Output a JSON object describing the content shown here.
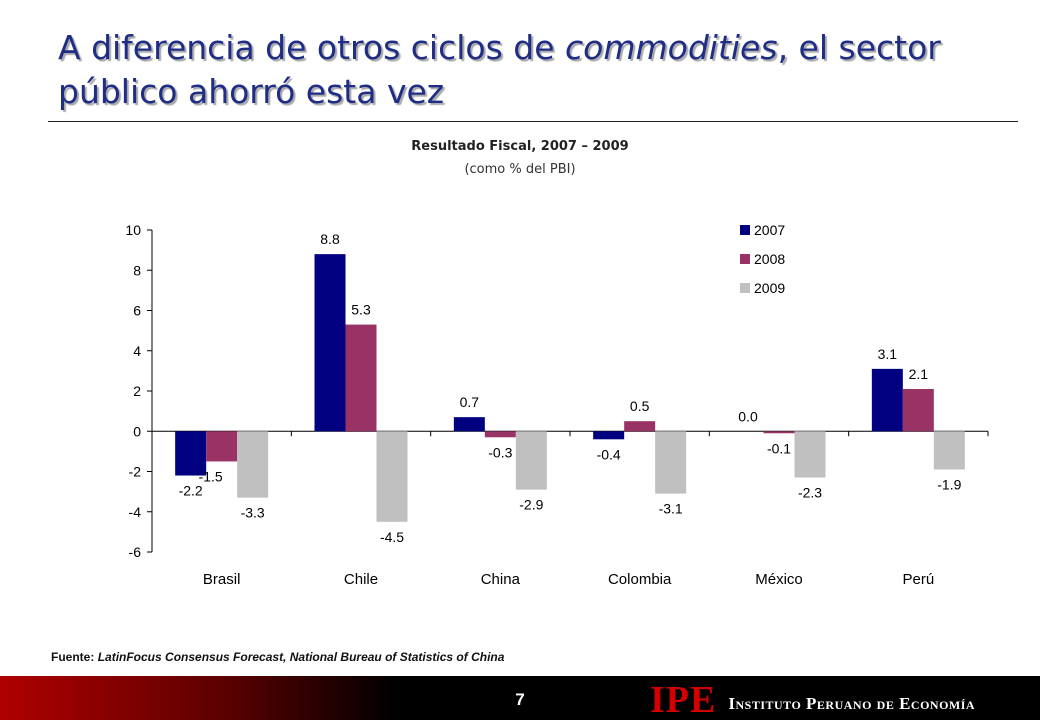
{
  "slide": {
    "title": "A diferencia de otros ciclos de commodities, el sector público ahorró esta vez",
    "title_part1": "A diferencia de otros ciclos de ",
    "title_italic": "commodities",
    "title_part2": ", el sector público ahorró esta vez",
    "source_label": "Fuente:",
    "source_text": "LatinFocus Consensus Forecast, National Bureau of Statistics of China",
    "page_number": "7",
    "logo_mark": "IPE",
    "logo_name": "Instituto Peruano de Economía"
  },
  "chart_data": {
    "type": "bar",
    "title": "Resultado Fiscal, 2007 – 2009",
    "subtitle": "(como % del PBI)",
    "categories": [
      "Brasil",
      "Chile",
      "China",
      "Colombia",
      "México",
      "Perú"
    ],
    "series": [
      {
        "name": "2007",
        "color": "#000080",
        "values": [
          -2.2,
          8.8,
          0.7,
          -0.4,
          0.0,
          3.1
        ]
      },
      {
        "name": "2008",
        "color": "#993366",
        "values": [
          -1.5,
          5.3,
          -0.3,
          0.5,
          -0.1,
          2.1
        ]
      },
      {
        "name": "2009",
        "color": "#C0C0C0",
        "values": [
          -3.3,
          -4.5,
          -2.9,
          -3.1,
          -2.3,
          -1.9
        ]
      }
    ],
    "data_labels": [
      [
        "-2.2",
        "8.8",
        "0.7",
        "-0.4",
        "0.0",
        "3.1"
      ],
      [
        "-1.5",
        "5.3",
        "-0.3",
        "0.5",
        "-0.1",
        "2.1"
      ],
      [
        "-3.3",
        "-4.5",
        "-2.9",
        "-3.1",
        "-2.3",
        "-1.9"
      ]
    ],
    "ylim": [
      -6,
      10
    ],
    "yticks": [
      10,
      8,
      6,
      4,
      2,
      0,
      -2,
      -4,
      -6
    ],
    "ytick_labels": [
      "10",
      "8",
      "6",
      "4",
      "2",
      "0",
      "-2",
      "-4",
      "-6"
    ],
    "grid": false,
    "legend_position": "top-right"
  }
}
